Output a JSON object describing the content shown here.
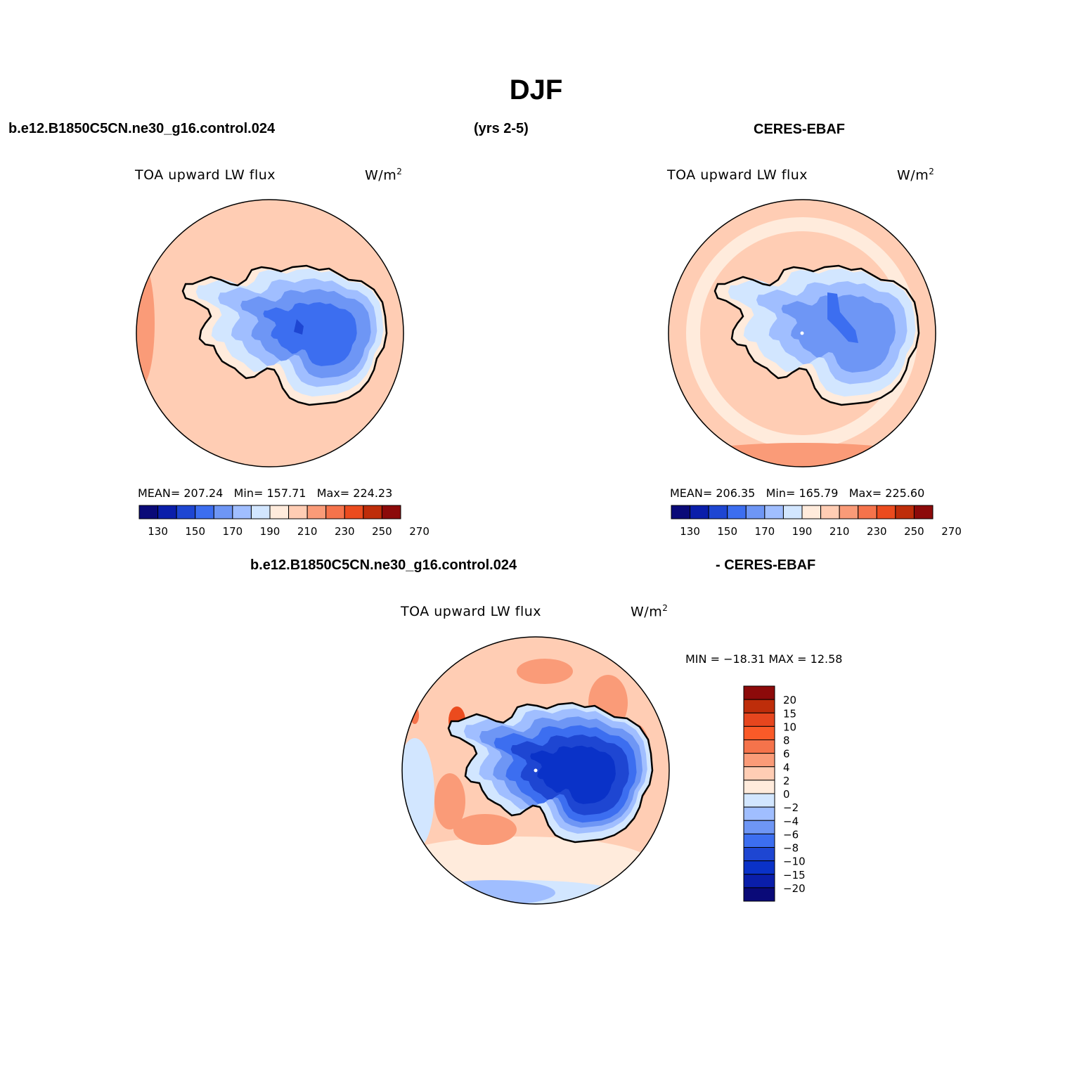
{
  "header": {
    "title": "DJF",
    "case_name": "b.e12.B1850C5CN.ne30_g16.control.024",
    "years": "(yrs 2-5)",
    "obs_name": "CERES-EBAF"
  },
  "panels": [
    {
      "id": "model",
      "title": "TOA upward LW flux",
      "units": "W/m",
      "units_sup": "2",
      "stats": {
        "mean_label": "MEAN=",
        "mean": "207.24",
        "min_label": "Min=",
        "min": "157.71",
        "max_label": "Max=",
        "max": "224.23"
      }
    },
    {
      "id": "obs",
      "title": "TOA upward LW flux",
      "units": "W/m",
      "units_sup": "2",
      "stats": {
        "mean_label": "MEAN=",
        "mean": "206.35",
        "min_label": "Min=",
        "min": "165.79",
        "max_label": "Max=",
        "max": "225.60"
      }
    }
  ],
  "abs_colorbar": {
    "colors": [
      "#0a0a78",
      "#0a1eaa",
      "#1e46d2",
      "#3c6ef0",
      "#6e96f5",
      "#a0beff",
      "#d2e6ff",
      "#ffebdc",
      "#ffcdb4",
      "#fa9b78",
      "#f5734b",
      "#eb4b1e",
      "#be2d0a",
      "#8c0a0a"
    ],
    "tick_labels": [
      "130",
      "150",
      "170",
      "190",
      "210",
      "230",
      "250",
      "270"
    ]
  },
  "diff": {
    "caption_left": "b.e12.B1850C5CN.ne30_g16.control.024",
    "caption_right": "- CERES-EBAF",
    "title": "TOA upward LW flux",
    "units": "W/m",
    "units_sup": "2",
    "minmax": "MIN = −18.31  MAX =   12.58",
    "colorbar": {
      "colors": [
        "#8c0a0a",
        "#be2d0a",
        "#e6461e",
        "#fa5a28",
        "#f5734b",
        "#fa9b78",
        "#ffcdb4",
        "#ffebdc",
        "#d2e6ff",
        "#a0beff",
        "#6e96f5",
        "#3c6ef0",
        "#1e46d2",
        "#0a32c8",
        "#0a1eaa",
        "#0a0a78"
      ],
      "tick_labels": [
        "20",
        "15",
        "10",
        "8",
        "6",
        "4",
        "2",
        "0",
        "−2",
        "−4",
        "−6",
        "−8",
        "−10",
        "−15",
        "−20"
      ]
    }
  }
}
